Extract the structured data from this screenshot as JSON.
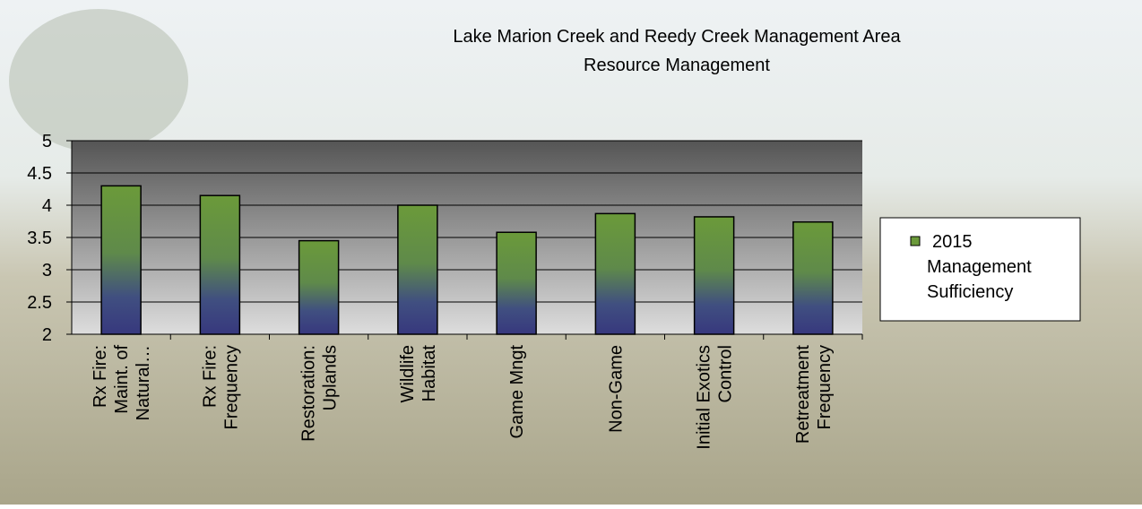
{
  "chart_data": {
    "type": "bar",
    "title": "Lake Marion Creek and Reedy Creek Management Area\nResource Management",
    "categories": [
      "Rx Fire:\nMaint. of\nNatural…",
      "Rx Fire:\nFrequency",
      "Restoration:\nUplands",
      "Wildlife\nHabitat",
      "Game Mngt",
      "Non-Game",
      "Initial Exotics\nControl",
      "Retreatment\nFrequency"
    ],
    "series": [
      {
        "name": "2015\nManagement\nSufficiency",
        "color": "#6b9a3a",
        "values": [
          4.3,
          4.15,
          3.45,
          4.0,
          3.58,
          3.87,
          3.82,
          3.74
        ]
      }
    ],
    "ylim": [
      2,
      5
    ],
    "yticks": [
      2,
      2.5,
      3,
      3.5,
      4,
      4.5,
      5
    ],
    "grid": true,
    "legend": "right"
  }
}
